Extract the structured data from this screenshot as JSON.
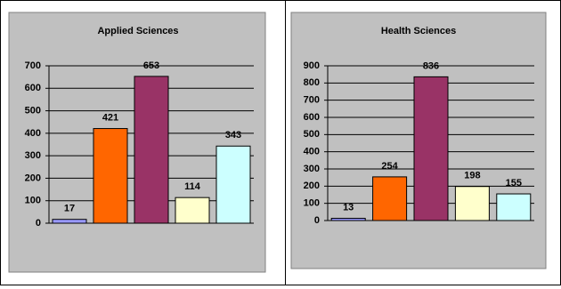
{
  "chart_data": [
    {
      "type": "bar",
      "title": "Applied Sciences",
      "categories": [
        null,
        null,
        null,
        null,
        null
      ],
      "values": [
        17,
        421,
        653,
        114,
        343
      ],
      "colors": [
        "#9999ff",
        "#ff6600",
        "#993366",
        "#ffffcc",
        "#ccffff"
      ],
      "ylim": [
        0,
        700
      ],
      "yticks": [
        0,
        100,
        200,
        300,
        400,
        500,
        600,
        700
      ],
      "grid": true
    },
    {
      "type": "bar",
      "title": "Health Sciences",
      "categories": [
        null,
        null,
        null,
        null,
        null
      ],
      "values": [
        13,
        254,
        836,
        198,
        155
      ],
      "colors": [
        "#9999ff",
        "#ff6600",
        "#993366",
        "#ffffcc",
        "#ccffff"
      ],
      "ylim": [
        0,
        900
      ],
      "yticks": [
        0,
        100,
        200,
        300,
        400,
        500,
        600,
        700,
        800,
        900
      ],
      "grid": true
    }
  ]
}
